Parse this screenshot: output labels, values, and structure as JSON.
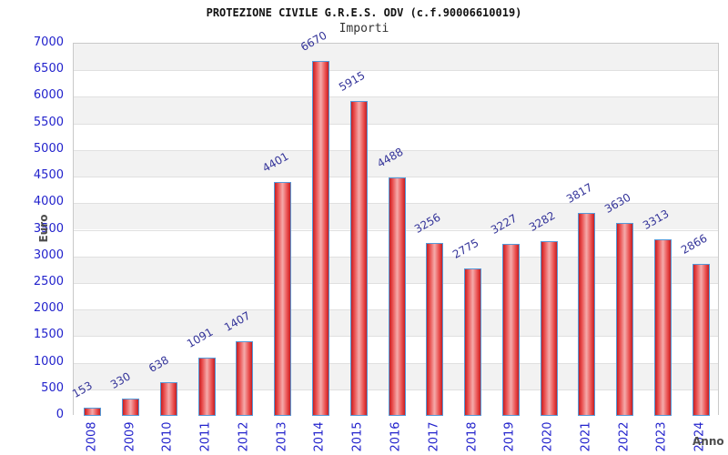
{
  "header": {
    "title": "PROTEZIONE CIVILE G.R.E.S. ODV (c.f.90006610019)",
    "subtitle": "Importi"
  },
  "chart_data": {
    "type": "bar",
    "title": "PROTEZIONE CIVILE G.R.E.S. ODV (c.f.90006610019)",
    "subtitle": "Importi",
    "xlabel": "Anno",
    "ylabel": "Euro",
    "categories": [
      "2008",
      "2009",
      "2010",
      "2011",
      "2012",
      "2013",
      "2014",
      "2015",
      "2016",
      "2017",
      "2018",
      "2019",
      "2020",
      "2021",
      "2022",
      "2023",
      "2024"
    ],
    "values": [
      153,
      330,
      638,
      1091,
      1407,
      4401,
      6670,
      5915,
      4488,
      3256,
      2775,
      3227,
      3282,
      3817,
      3630,
      3313,
      2866
    ],
    "ylim": [
      0,
      7000
    ],
    "yticks": [
      0,
      500,
      1000,
      1500,
      2000,
      2500,
      3000,
      3500,
      4000,
      4500,
      5000,
      5500,
      6000,
      6500,
      7000
    ],
    "grid": true,
    "legend_position": "none",
    "colors": {
      "tick_label": "#2222cc",
      "value_label": "#333399",
      "axis_title": "#4d4d4d",
      "bar_edge": "#c32024",
      "bar_highlight": "#f5abab",
      "bar_border": "#5599d8",
      "band": "#f2f2f2",
      "gridline": "#e0e0e0",
      "plot_border": "#c9c9c9"
    }
  }
}
